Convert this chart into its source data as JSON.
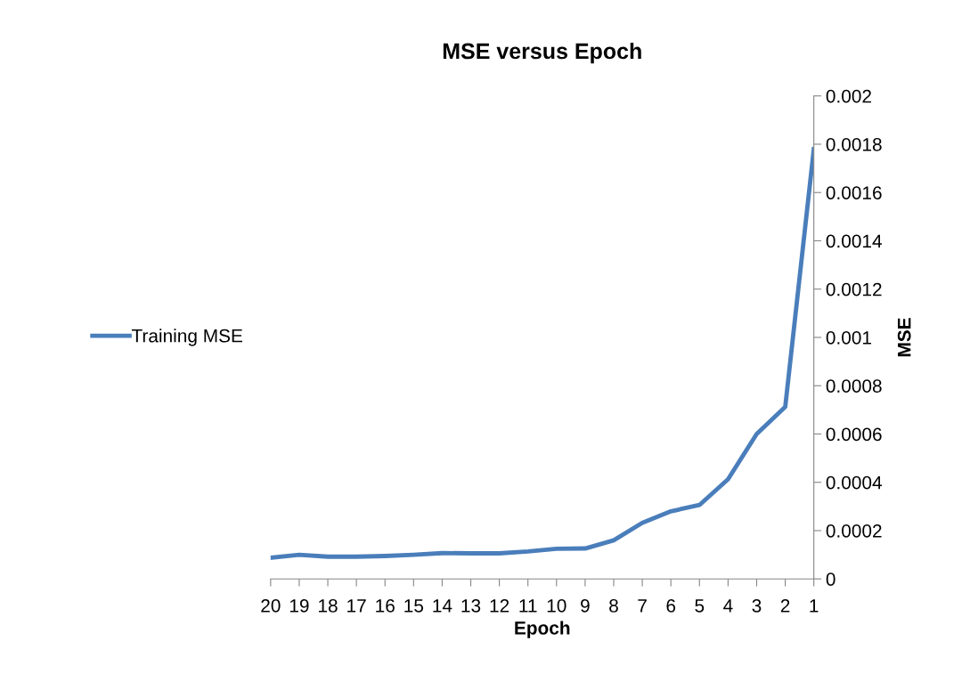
{
  "chart_data": {
    "type": "line",
    "title": "MSE versus Epoch",
    "xlabel": "Epoch",
    "ylabel": "MSE",
    "categories": [
      "20",
      "19",
      "18",
      "17",
      "16",
      "15",
      "14",
      "13",
      "12",
      "11",
      "10",
      "9",
      "8",
      "7",
      "6",
      "5",
      "4",
      "3",
      "2",
      "1"
    ],
    "series": [
      {
        "name": "Training MSE",
        "color": "#4a7ebb",
        "values": [
          8.8e-05,
          0.0001,
          9.2e-05,
          9.2e-05,
          9.5e-05,
          0.0001,
          0.000107,
          0.000106,
          0.000106,
          0.000114,
          0.000125,
          0.000126,
          0.00016,
          0.000232,
          0.00028,
          0.000306,
          0.000413,
          0.0006,
          0.000712,
          0.00178
        ]
      }
    ],
    "ylim": [
      0,
      0.002
    ],
    "yticks": [
      0,
      0.0002,
      0.0004,
      0.0006,
      0.0008,
      0.001,
      0.0012,
      0.0014,
      0.0016,
      0.0018,
      0.002
    ],
    "grid": false,
    "legend": "left",
    "marker": "none",
    "line_style": "solid"
  }
}
